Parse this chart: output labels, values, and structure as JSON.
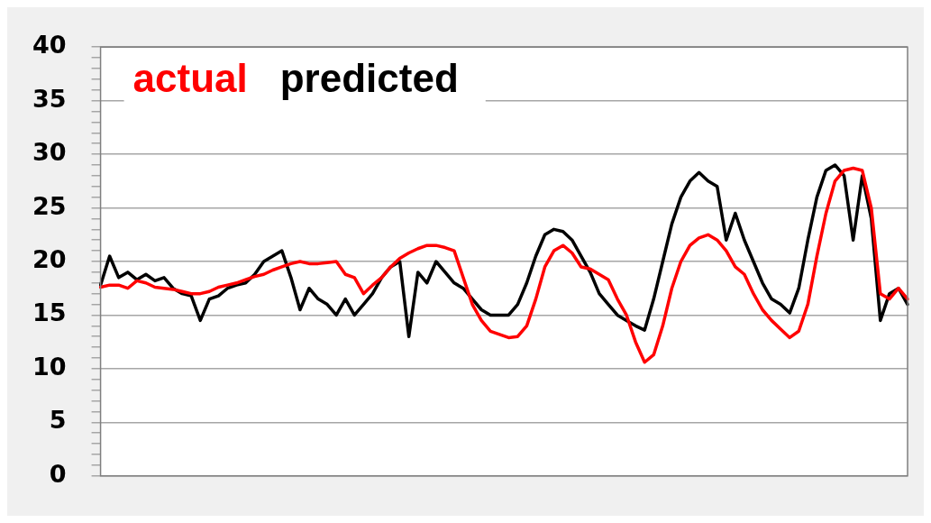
{
  "chart_data": {
    "type": "line",
    "categories": [
      null,
      null,
      null,
      null,
      null,
      null,
      null,
      null,
      null,
      null,
      null,
      null,
      null,
      null,
      null,
      null,
      null,
      null,
      null,
      null,
      null,
      null,
      null,
      null,
      null,
      null,
      null,
      null,
      null,
      null,
      null,
      null,
      null,
      null,
      null,
      null,
      null,
      null,
      null,
      null,
      null,
      null,
      null,
      null,
      null,
      null,
      null,
      null,
      null,
      null,
      null,
      null,
      null,
      null,
      null,
      null,
      null,
      null,
      null,
      null,
      null,
      null,
      null,
      null,
      null,
      null,
      null,
      null,
      null,
      null,
      null,
      null,
      null,
      null,
      null,
      null,
      null,
      null,
      null,
      null,
      null,
      null,
      null,
      null,
      null,
      null,
      null,
      null,
      null,
      null
    ],
    "series": [
      {
        "name": "actual",
        "color": "#ff0000",
        "values": [
          17.6,
          17.8,
          17.8,
          17.5,
          18.2,
          18.0,
          17.6,
          17.5,
          17.4,
          17.2,
          17.0,
          17.0,
          17.2,
          17.6,
          17.8,
          18.0,
          18.3,
          18.6,
          18.8,
          19.2,
          19.5,
          19.8,
          20.0,
          19.8,
          19.8,
          19.9,
          20.0,
          18.8,
          18.5,
          17.0,
          17.8,
          18.5,
          19.5,
          20.3,
          20.8,
          21.2,
          21.5,
          21.5,
          21.3,
          21.0,
          18.5,
          16.0,
          14.5,
          13.5,
          13.2,
          12.9,
          13.0,
          14.0,
          16.5,
          19.5,
          21.0,
          21.5,
          20.8,
          19.5,
          19.3,
          18.8,
          18.3,
          16.5,
          15.0,
          12.5,
          10.6,
          11.3,
          14.0,
          17.5,
          20.0,
          21.5,
          22.2,
          22.5,
          22.0,
          21.0,
          19.5,
          18.8,
          17.0,
          15.5,
          14.5,
          13.7,
          12.9,
          13.5,
          16.0,
          20.5,
          24.5,
          27.5,
          28.5,
          28.7,
          28.5,
          25.0,
          17.0,
          16.5,
          17.5,
          16.5
        ]
      },
      {
        "name": "predicted",
        "color": "#000000",
        "values": [
          17.8,
          20.5,
          18.5,
          19.0,
          18.3,
          18.8,
          18.2,
          18.5,
          17.5,
          17.0,
          16.8,
          14.5,
          16.5,
          16.8,
          17.5,
          17.8,
          18.0,
          18.8,
          20.0,
          20.5,
          21.0,
          18.5,
          15.5,
          17.5,
          16.5,
          16.0,
          15.0,
          16.5,
          15.0,
          16.0,
          17.0,
          18.5,
          19.5,
          20.0,
          13.0,
          19.0,
          18.0,
          20.0,
          19.0,
          18.0,
          17.5,
          16.5,
          15.5,
          15.0,
          15.0,
          15.0,
          16.0,
          18.0,
          20.5,
          22.5,
          23.0,
          22.8,
          22.0,
          20.5,
          19.0,
          17.0,
          16.0,
          15.0,
          14.5,
          14.0,
          13.6,
          16.5,
          20.0,
          23.5,
          26.0,
          27.5,
          28.3,
          27.5,
          27.0,
          22.0,
          24.5,
          22.0,
          20.0,
          18.0,
          16.5,
          16.0,
          15.2,
          17.5,
          22.0,
          26.0,
          28.5,
          29.0,
          28.0,
          22.0,
          28.0,
          24.0,
          14.5,
          17.0,
          17.5,
          16.0
        ]
      }
    ],
    "ylim": [
      0,
      40
    ],
    "yticks": [
      0,
      {
        "value": 1,
        "label": null
      },
      {
        "value": 2,
        "label": null
      },
      {
        "value": 3,
        "label": null
      },
      {
        "value": 4,
        "label": null
      },
      5,
      {
        "value": 6,
        "label": null
      },
      {
        "value": 7,
        "label": null
      },
      {
        "value": 8,
        "label": null
      },
      {
        "value": 9,
        "label": null
      },
      10,
      {
        "value": 11,
        "label": null
      },
      {
        "value": 12,
        "label": null
      },
      {
        "value": 13,
        "label": null
      },
      {
        "value": 14,
        "label": null
      },
      15,
      {
        "value": 16,
        "label": null
      },
      {
        "value": 17,
        "label": null
      },
      {
        "value": 18,
        "label": null
      },
      {
        "value": 19,
        "label": null
      },
      20,
      {
        "value": 21,
        "label": null
      },
      {
        "value": 22,
        "label": null
      },
      {
        "value": 23,
        "label": null
      },
      {
        "value": 24,
        "label": null
      },
      25,
      {
        "value": 26,
        "label": null
      },
      {
        "value": 27,
        "label": null
      },
      {
        "value": 28,
        "label": null
      },
      {
        "value": 29,
        "label": null
      },
      30,
      {
        "value": 31,
        "label": null
      },
      {
        "value": 32,
        "label": null
      },
      {
        "value": 33,
        "label": null
      },
      {
        "value": 34,
        "label": null
      },
      35,
      {
        "value": 36,
        "label": null
      },
      {
        "value": 37,
        "label": null
      },
      {
        "value": 38,
        "label": null
      },
      {
        "value": 39,
        "label": null
      },
      40
    ],
    "grid": "y",
    "legend": "top left",
    "marker": "none",
    "line_style": "solid",
    "tick_labels": "y"
  }
}
